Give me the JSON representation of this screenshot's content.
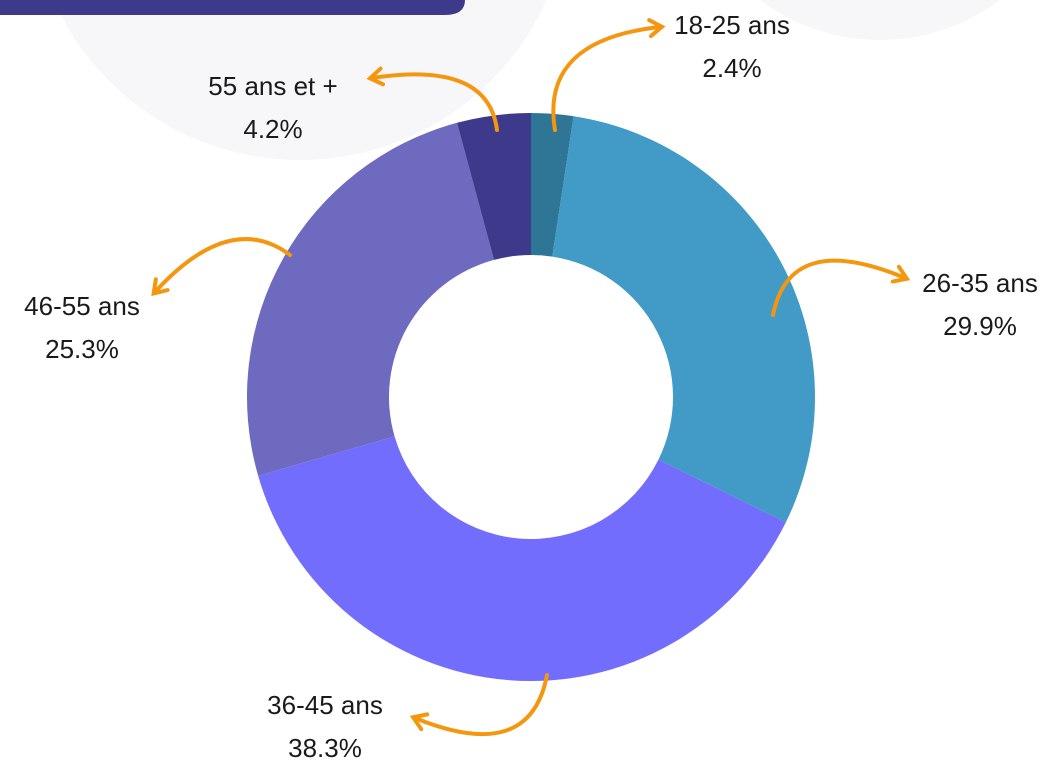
{
  "chart_data": {
    "type": "donut",
    "categories": [
      "18-25 ans",
      "26-35 ans",
      "36-45 ans",
      "46-55 ans",
      "55 ans et +"
    ],
    "values": [
      2.4,
      29.9,
      38.3,
      25.3,
      4.2
    ],
    "value_labels": [
      "2.4%",
      "29.9%",
      "38.3%",
      "25.3%",
      "4.2%"
    ],
    "colors": [
      "#2e7596",
      "#419bc6",
      "#736dfd",
      "#6e6abf",
      "#3d3a8b"
    ]
  }
}
